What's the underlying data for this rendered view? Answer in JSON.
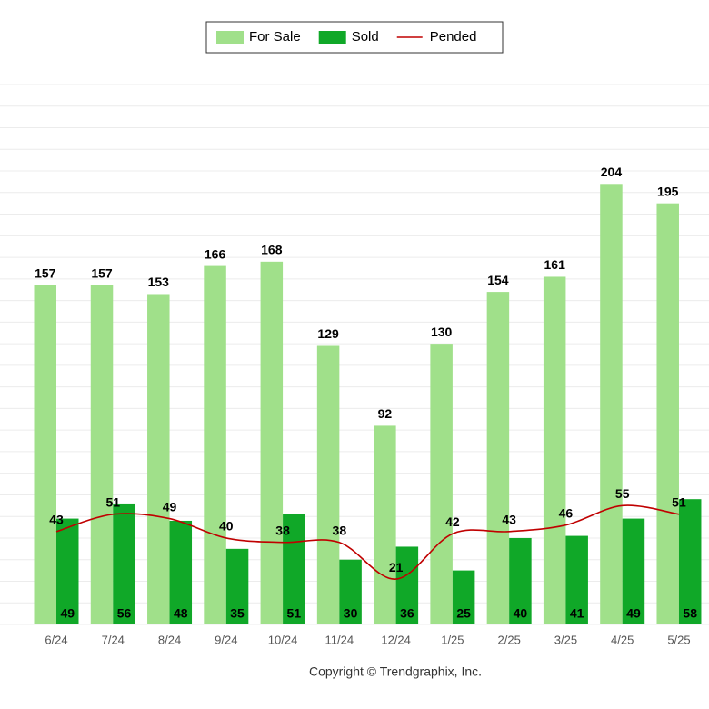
{
  "chart_data": {
    "type": "bar",
    "categories": [
      "6/24",
      "7/24",
      "8/24",
      "9/24",
      "10/24",
      "11/24",
      "12/24",
      "1/25",
      "2/25",
      "3/25",
      "4/25",
      "5/25"
    ],
    "series": [
      {
        "name": "For Sale",
        "type": "bar",
        "color": "#a0e08a",
        "values": [
          157,
          157,
          153,
          166,
          168,
          129,
          92,
          130,
          154,
          161,
          204,
          195
        ]
      },
      {
        "name": "Sold",
        "type": "bar",
        "color": "#10a828",
        "values": [
          49,
          56,
          48,
          35,
          51,
          30,
          36,
          25,
          40,
          41,
          49,
          58
        ]
      },
      {
        "name": "Pended",
        "type": "line",
        "color": "#c00000",
        "values": [
          43,
          51,
          49,
          40,
          38,
          38,
          21,
          42,
          43,
          46,
          55,
          51
        ]
      }
    ],
    "ylim": [
      0,
      250
    ],
    "yticks": [
      0,
      10,
      20,
      30,
      40,
      50,
      60,
      70,
      80,
      90,
      100,
      110,
      120,
      130,
      140,
      150,
      160,
      170,
      180,
      190,
      200,
      210,
      220,
      230,
      240,
      250
    ],
    "grid": true,
    "legend": "top",
    "credit": "Copyright © Trendgraphix, Inc."
  }
}
